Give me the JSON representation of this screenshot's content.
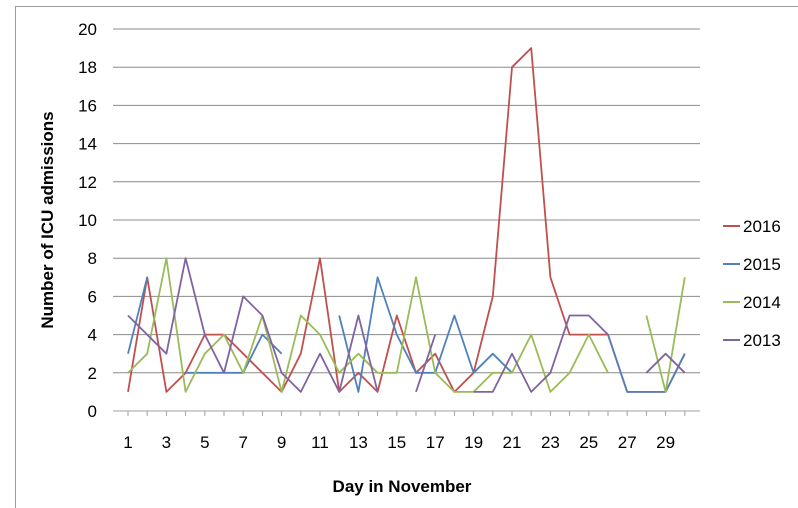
{
  "chart_data": {
    "type": "line",
    "xlabel": "Day in November",
    "ylabel": "Number of ICU admissions",
    "ylim": [
      0,
      20
    ],
    "y_ticks": [
      "0",
      "2",
      "4",
      "6",
      "8",
      "10",
      "12",
      "14",
      "16",
      "18",
      "20"
    ],
    "x_ticks": [
      "1",
      "3",
      "5",
      "7",
      "9",
      "11",
      "13",
      "15",
      "17",
      "19",
      "21",
      "23",
      "25",
      "27",
      "29"
    ],
    "x": [
      1,
      2,
      3,
      4,
      5,
      6,
      7,
      8,
      9,
      10,
      11,
      12,
      13,
      14,
      15,
      16,
      17,
      18,
      19,
      20,
      21,
      22,
      23,
      24,
      25,
      26,
      27,
      28,
      29,
      30
    ],
    "grid": "horizontal",
    "legend_position": "right",
    "series": [
      {
        "name": "2016",
        "color": "#c0504d",
        "values": [
          1,
          7,
          1,
          2,
          4,
          4,
          3,
          2,
          1,
          3,
          8,
          1,
          2,
          1,
          5,
          2,
          3,
          1,
          2,
          6,
          18,
          19,
          7,
          4,
          4,
          4,
          1,
          1,
          1,
          3
        ]
      },
      {
        "name": "2015",
        "color": "#4f81bd",
        "values": [
          3,
          7,
          null,
          2,
          2,
          2,
          2,
          4,
          3,
          null,
          null,
          5,
          1,
          7,
          4,
          2,
          2,
          5,
          2,
          3,
          2,
          null,
          null,
          null,
          null,
          4,
          1,
          1,
          1,
          3
        ]
      },
      {
        "name": "2014",
        "color": "#9bbb59",
        "values": [
          2,
          3,
          8,
          1,
          3,
          4,
          2,
          5,
          1,
          5,
          4,
          2,
          3,
          2,
          2,
          7,
          2,
          1,
          1,
          2,
          2,
          4,
          1,
          2,
          4,
          2,
          null,
          5,
          1,
          7
        ]
      },
      {
        "name": "2013",
        "color": "#8064a2",
        "values": [
          5,
          4,
          3,
          8,
          4,
          2,
          6,
          5,
          2,
          1,
          3,
          1,
          5,
          1,
          null,
          1,
          4,
          null,
          1,
          1,
          3,
          1,
          2,
          5,
          5,
          4,
          null,
          2,
          3,
          2
        ]
      }
    ]
  }
}
